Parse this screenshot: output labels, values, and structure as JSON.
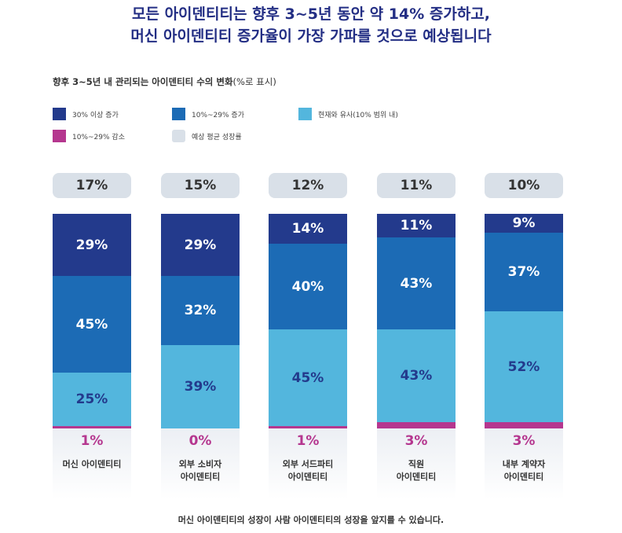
{
  "title_lines": [
    "모든 아이덴티티는 향후 3~5년 동안 약 14% 증가하고,",
    "머신 아이덴티티 증가율이 가장 가파를 것으로 예상됩니다"
  ],
  "chart_data": {
    "type": "bar",
    "stacked": true,
    "title": "향후 3~5년 내 관리되는 아이덴티티 수의 변화",
    "title_note": "(%로 표시)",
    "categories": [
      "머신 아이덴티티",
      "외부 소비자\n아이덴티티",
      "외부 서드파티\n아이덴티티",
      "직원\n아이덴티티",
      "내부 계약자\n아이덴티티"
    ],
    "average_growth": {
      "name": "예상 평균 성장률",
      "values": [
        17,
        15,
        12,
        11,
        10
      ],
      "color": "#d9e0e8"
    },
    "series": [
      {
        "name": "30% 이상 증가",
        "values": [
          29,
          29,
          14,
          11,
          9
        ],
        "color": "#233a8c",
        "label_color": "#ffffff"
      },
      {
        "name": "10%~29% 증가",
        "values": [
          45,
          32,
          40,
          43,
          37
        ],
        "color": "#1c6bb5",
        "label_color": "#ffffff"
      },
      {
        "name": "현재와 유사(10% 범위 내)",
        "values": [
          25,
          39,
          45,
          43,
          52
        ],
        "color": "#53b6dd",
        "label_color": "#233a8c"
      },
      {
        "name": "10%~29% 감소",
        "values": [
          1,
          0,
          1,
          3,
          3
        ],
        "color": "#b5378f",
        "label_color": "#b5378f"
      }
    ],
    "unit": "%",
    "legend_position": "top-left",
    "footnote": "머신 아이덴티티의 성장이 사람 아이덴티티의 성장을 앞지를 수 있습니다."
  }
}
